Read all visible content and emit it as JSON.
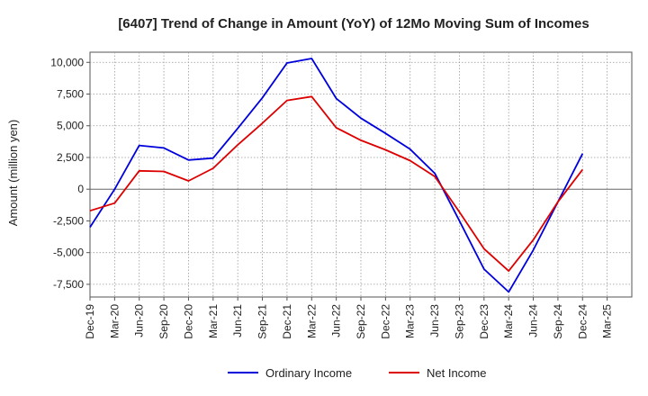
{
  "chart_data": {
    "type": "line",
    "title": "[6407]  Trend of Change in Amount (YoY) of 12Mo Moving Sum of Incomes",
    "xlabel": "",
    "ylabel": "Amount (million yen)",
    "ylim": [
      -8500,
      10800
    ],
    "yticks": [
      10000,
      7500,
      5000,
      2500,
      0,
      -2500,
      -5000,
      -7500
    ],
    "ytick_labels": [
      "10,000",
      "7,500",
      "5,000",
      "2,500",
      "0",
      "-2,500",
      "-5,000",
      "-7,500"
    ],
    "xtick_labels": [
      "Dec-19",
      "Mar-20",
      "Jun-20",
      "Sep-20",
      "Dec-20",
      "Mar-21",
      "Jun-21",
      "Sep-21",
      "Dec-21",
      "Mar-22",
      "Jun-22",
      "Sep-22",
      "Dec-22",
      "Mar-23",
      "Jun-23",
      "Sep-23",
      "Dec-23",
      "Mar-24",
      "Jun-24",
      "Sep-24",
      "Dec-24",
      "Mar-25"
    ],
    "grid": true,
    "legend_position": "bottom",
    "series": [
      {
        "name": "Ordinary Income",
        "color": "#0000dd",
        "values": [
          -3000,
          0,
          3450,
          3250,
          2300,
          2450,
          4800,
          7200,
          9950,
          10300,
          7150,
          5600,
          4400,
          3150,
          1250,
          -2500,
          -6300,
          -8100,
          -4800,
          -1000,
          2800
        ]
      },
      {
        "name": "Net Income",
        "color": "#dd0000",
        "values": [
          -1700,
          -1100,
          1450,
          1400,
          650,
          1650,
          3500,
          5200,
          7000,
          7300,
          4850,
          3850,
          3100,
          2250,
          1000,
          -1800,
          -4700,
          -6450,
          -4000,
          -1000,
          1550
        ]
      }
    ]
  }
}
